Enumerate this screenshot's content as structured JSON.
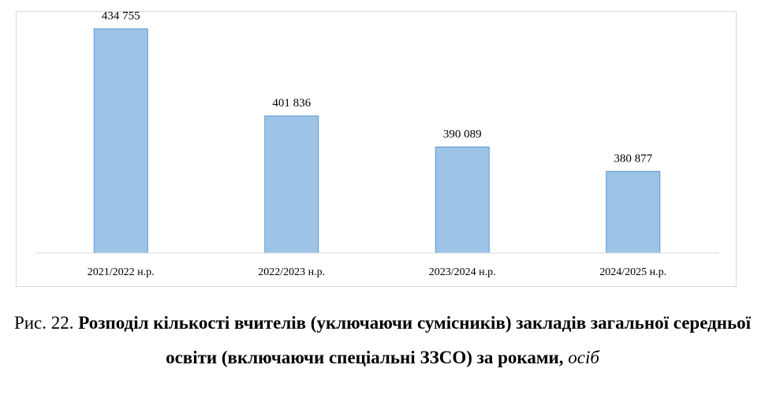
{
  "chart_data": {
    "type": "bar",
    "title": "",
    "xlabel": "",
    "ylabel": "",
    "categories": [
      "2021/2022 н.р.",
      "2022/2023 н.р.",
      "2023/2024 н.р.",
      "2024/2025 н.р."
    ],
    "values": [
      434755,
      401836,
      390089,
      380877
    ],
    "value_labels": [
      "434 755",
      "401 836",
      "390 089",
      "380 877"
    ],
    "ylim": [
      350000,
      440000
    ],
    "grid": false,
    "legend": "none",
    "bar_color": "#9dc3e6",
    "bar_edge_color": "#5b9bd5"
  },
  "caption": {
    "prefix": "Рис. 22. ",
    "title": "Розподіл кількості вчителів (уключаючи сумісників) закладів загальної середньої освіти (включаючи спеціальні ЗЗСО) за роками,",
    "unit": "осіб"
  }
}
